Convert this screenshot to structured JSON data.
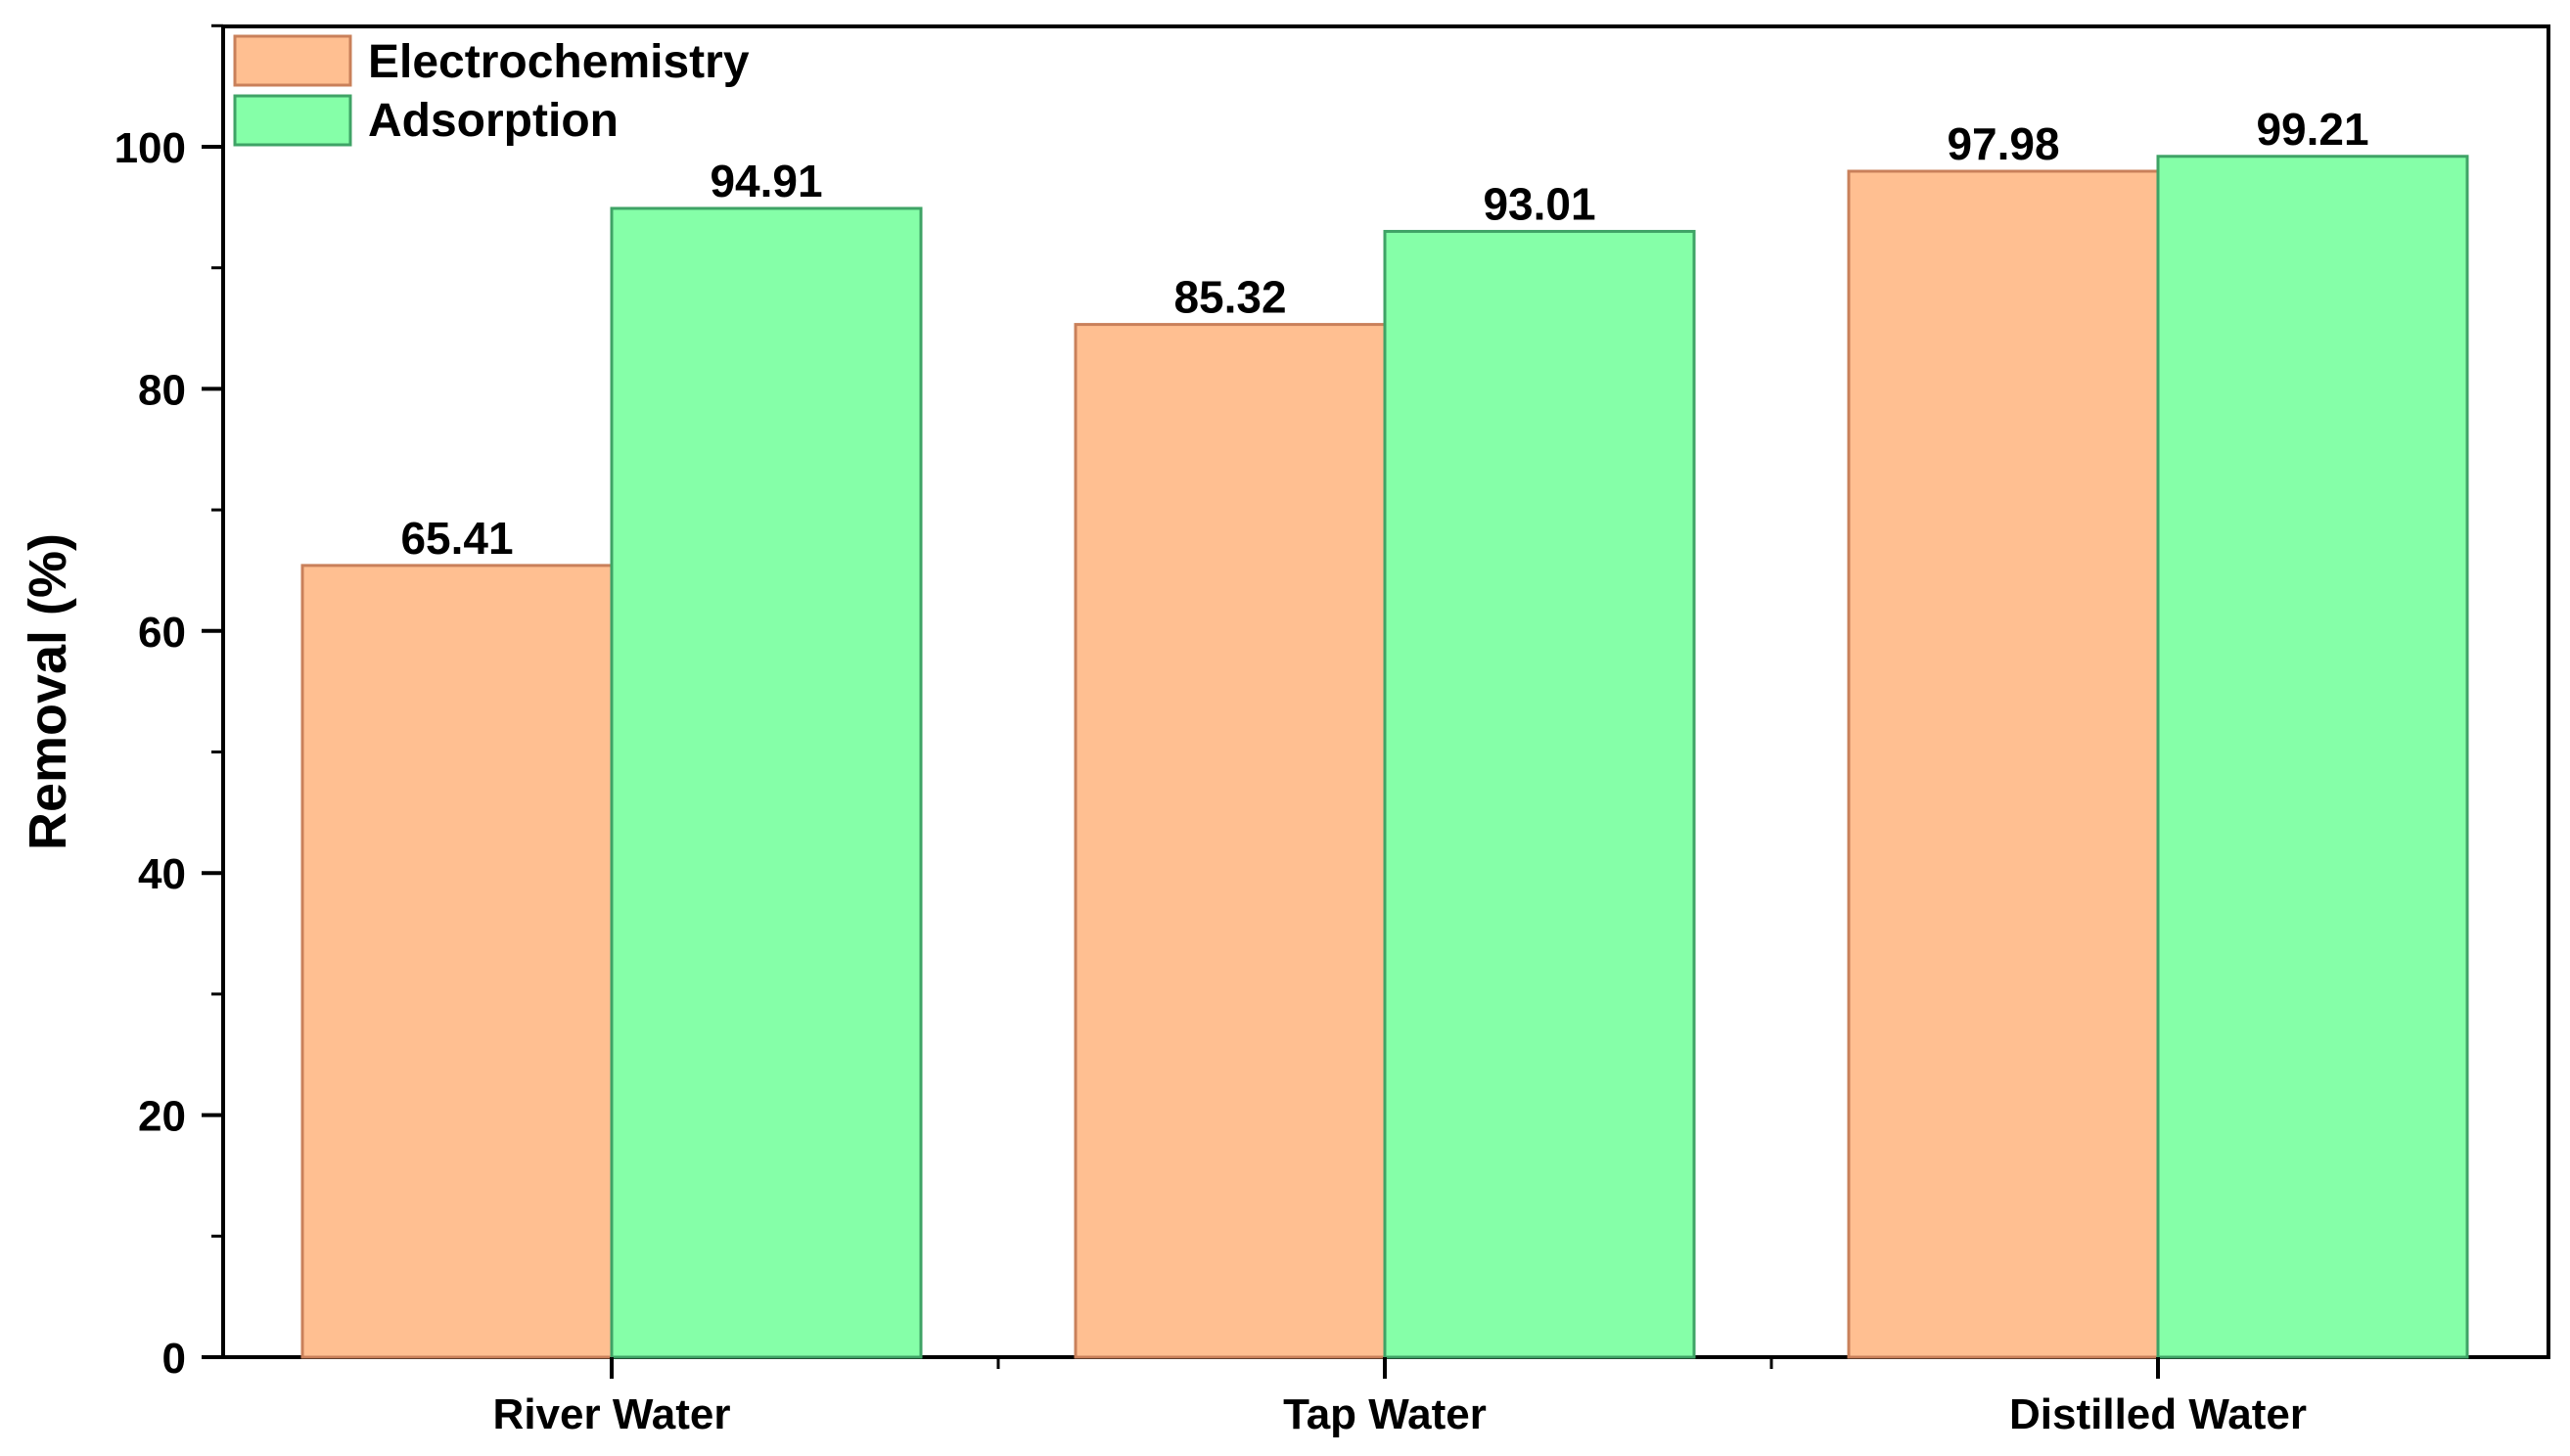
{
  "chart_data": {
    "type": "bar",
    "title": "",
    "xlabel": "",
    "ylabel": "Removal (%)",
    "ylim": [
      0,
      110
    ],
    "yticks": [
      0,
      20,
      40,
      60,
      80,
      100
    ],
    "categories": [
      "River Water",
      "Tap Water",
      "Distilled Water"
    ],
    "series": [
      {
        "name": "Electrochemistry",
        "values": [
          65.41,
          85.32,
          97.98
        ],
        "color": "#FFBF91",
        "edge": "#C9805A"
      },
      {
        "name": "Adsorption",
        "values": [
          94.91,
          93.01,
          99.21
        ],
        "color": "#85FFA8",
        "edge": "#3FA366"
      }
    ],
    "value_labels": [
      [
        "65.41",
        "85.32",
        "97.98"
      ],
      [
        "94.91",
        "93.01",
        "99.21"
      ]
    ],
    "tick_labels": [
      "0",
      "20",
      "40",
      "60",
      "80",
      "100"
    ],
    "legend": {
      "position": "top-left",
      "entries": [
        "Electrochemistry",
        "Adsorption"
      ]
    }
  }
}
